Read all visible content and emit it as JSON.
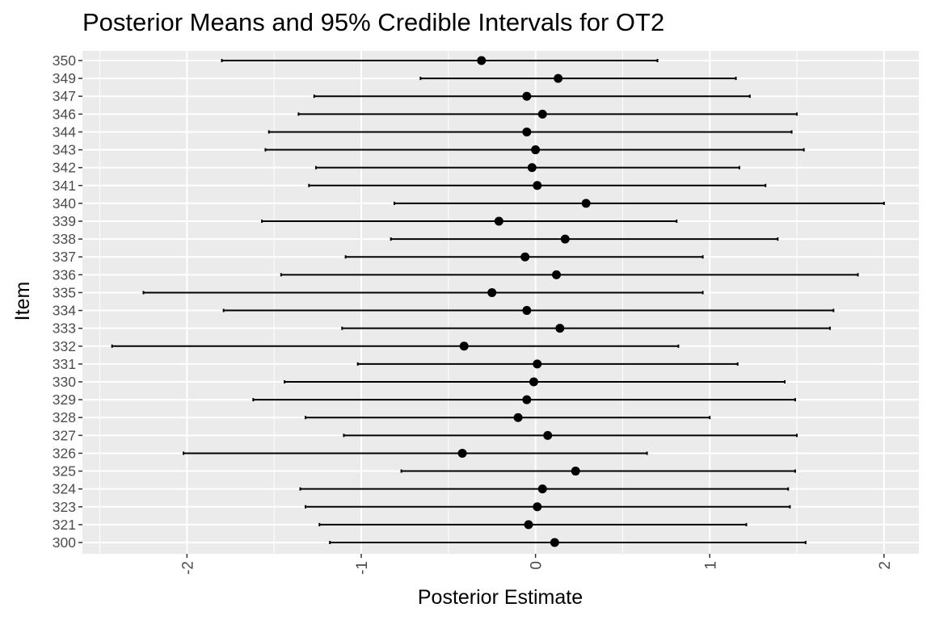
{
  "chart_data": {
    "type": "errorbar",
    "title": "Posterior Means and 95% Credible Intervals for OT2",
    "xlabel": "Posterior Estimate",
    "ylabel": "Item",
    "xlim": [
      -2.6,
      2.2
    ],
    "x_ticks": [
      -2,
      -1,
      0,
      1,
      2
    ],
    "x_tick_labels": [
      "-2",
      "-1",
      "0",
      "1",
      "2"
    ],
    "x_tick_label_rotation": -90,
    "grid": true,
    "panel_background": "#ebebeb",
    "grid_color": "#ffffff",
    "point_color": "#000000",
    "categories": [
      "350",
      "349",
      "347",
      "346",
      "344",
      "343",
      "342",
      "341",
      "340",
      "339",
      "338",
      "337",
      "336",
      "335",
      "334",
      "333",
      "332",
      "331",
      "330",
      "329",
      "328",
      "327",
      "326",
      "325",
      "324",
      "323",
      "321",
      "300"
    ],
    "means": [
      -0.31,
      0.13,
      -0.05,
      0.04,
      -0.05,
      0.0,
      -0.02,
      0.01,
      0.29,
      -0.21,
      0.17,
      -0.06,
      0.12,
      -0.25,
      -0.05,
      0.14,
      -0.41,
      0.01,
      -0.01,
      -0.05,
      -0.1,
      0.07,
      -0.42,
      0.23,
      0.04,
      0.01,
      -0.04,
      0.11
    ],
    "lower": [
      -1.8,
      -0.66,
      -1.27,
      -1.36,
      -1.53,
      -1.55,
      -1.26,
      -1.3,
      -0.81,
      -1.57,
      -0.83,
      -1.09,
      -1.46,
      -2.25,
      -1.79,
      -1.11,
      -2.43,
      -1.02,
      -1.44,
      -1.62,
      -1.32,
      -1.1,
      -2.02,
      -0.77,
      -1.35,
      -1.32,
      -1.24,
      -1.18
    ],
    "upper": [
      0.7,
      1.15,
      1.23,
      1.5,
      1.47,
      1.54,
      1.17,
      1.32,
      2.0,
      0.81,
      1.39,
      0.96,
      1.85,
      0.96,
      1.71,
      1.69,
      0.82,
      1.16,
      1.43,
      1.49,
      1.0,
      1.5,
      0.64,
      1.49,
      1.45,
      1.46,
      1.21,
      1.55
    ]
  }
}
